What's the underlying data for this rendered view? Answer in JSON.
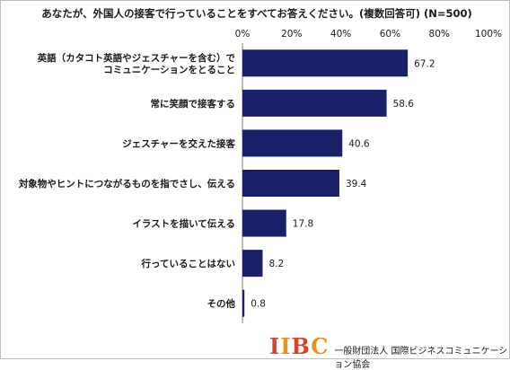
{
  "chart_data": {
    "type": "bar",
    "orientation": "horizontal",
    "title": "あなたが、外国人の接客で行っていることをすべてお答えください。(複数回答可) (N=500)",
    "categories": [
      [
        "英語（カタコト英語やジェスチャーを含む）で",
        "コミュニケーションをとること"
      ],
      [
        "常に笑顔で接客する"
      ],
      [
        "ジェスチャーを交えた接客"
      ],
      [
        "対象物やヒントにつながるものを指でさし、伝える"
      ],
      [
        "イラストを描いて伝える"
      ],
      [
        "行っていることはない"
      ],
      [
        "その他"
      ]
    ],
    "values": [
      67.2,
      58.6,
      40.6,
      39.4,
      17.8,
      8.2,
      0.8
    ],
    "value_labels": [
      "67.2",
      "58.6",
      "40.6",
      "39.4",
      "17.8",
      "8.2",
      "0.8"
    ],
    "xlim": [
      0,
      100
    ],
    "xticks": [
      0,
      20,
      40,
      60,
      80,
      100
    ],
    "xtick_labels": [
      "0%",
      "20%",
      "40%",
      "60%",
      "80%",
      "100%"
    ],
    "xaxis_position": "top",
    "grid": false,
    "bar_color": "#1b2168"
  },
  "footer": {
    "logo_text": "IIBC",
    "org_name": "一般財団法人 国際ビジネスコミュニケーション協会"
  }
}
